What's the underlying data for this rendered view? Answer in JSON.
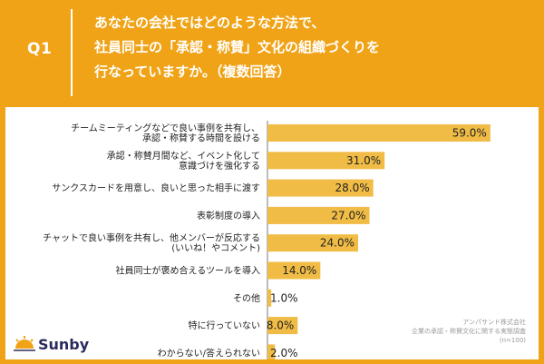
{
  "header": {
    "question_number": "Q1",
    "question_lines": [
      "あなたの会社ではどのような方法で、",
      "社員同士の「承認・称賛」文化の組織づくりを",
      "行なっていますか。（複数回答）"
    ]
  },
  "colors": {
    "background": "#F0A316",
    "bar": "#F0BC45",
    "text": "#222222"
  },
  "chart_data": {
    "type": "bar",
    "orientation": "horizontal",
    "categories": [
      [
        "チームミーティングなどで良い事例を共有し、",
        "承認・称賛する時間を設ける"
      ],
      [
        "承認・称賛月間など、イベント化して",
        "意識づけを強化する"
      ],
      [
        "サンクスカードを用意し、良いと思った相手に渡す"
      ],
      [
        "表彰制度の導入"
      ],
      [
        "チャットで良い事例を共有し、他メンバーが反応する",
        "(いいね！やコメント)"
      ],
      [
        "社員同士が褒め合えるツールを導入"
      ],
      [
        "その他"
      ],
      [
        "特に行っていない"
      ],
      [
        "わからない/答えられない"
      ]
    ],
    "values": [
      59.0,
      31.0,
      28.0,
      27.0,
      24.0,
      14.0,
      1.0,
      8.0,
      2.0
    ],
    "value_labels": [
      "59.0%",
      "31.0%",
      "28.0%",
      "27.0%",
      "24.0%",
      "14.0%",
      "1.0%",
      "8.0%",
      "2.0%"
    ],
    "xlim": [
      0,
      60
    ],
    "grid": false,
    "legend": "none"
  },
  "source": {
    "lines": [
      "アンパサンド株式会社",
      "企業の承認・称賛文化に関する実態調査",
      "(n=100)"
    ]
  },
  "logo": {
    "text": "Sunby"
  }
}
